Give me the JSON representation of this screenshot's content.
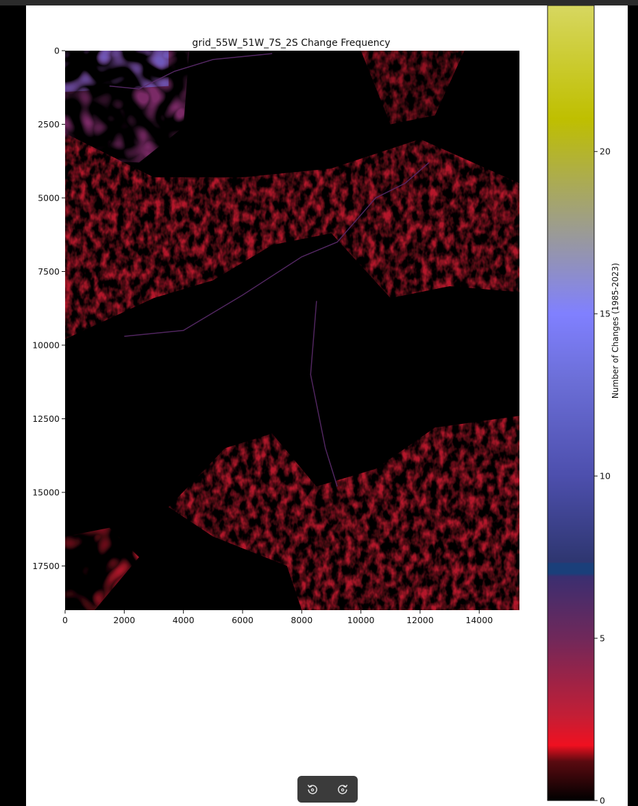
{
  "toolbar": {
    "buttons": [
      {
        "name": "rotate-left-button",
        "icon": "rotate-counterclockwise-icon"
      },
      {
        "name": "rotate-right-button",
        "icon": "rotate-clockwise-icon"
      }
    ]
  },
  "chart_data": {
    "type": "heatmap",
    "title": "grid_55W_51W_7S_2S Change Frequency",
    "xlabel": "",
    "ylabel": "",
    "xlim": [
      0,
      15360
    ],
    "ylim": [
      19000,
      0
    ],
    "x_ticks": [
      0,
      2000,
      4000,
      6000,
      8000,
      10000,
      12000,
      14000
    ],
    "x_tick_labels": [
      "0",
      "2000",
      "4000",
      "6000",
      "8000",
      "10000",
      "12000",
      "14000"
    ],
    "y_ticks": [
      0,
      2500,
      5000,
      7500,
      10000,
      12500,
      15000,
      17500
    ],
    "y_tick_labels": [
      "0",
      "2500",
      "5000",
      "7500",
      "10000",
      "12500",
      "15000",
      "17500"
    ],
    "colorbar": {
      "label": "Number of Changes (1985-2023)",
      "range": [
        0,
        24.5
      ],
      "ticks": [
        0,
        5,
        10,
        15,
        20
      ],
      "tick_labels": [
        "0",
        "5",
        "10",
        "15",
        "20"
      ],
      "stops": [
        {
          "value": 0,
          "color": "#000000"
        },
        {
          "value": 1.2,
          "color": "#5a0a10"
        },
        {
          "value": 1.7,
          "color": "#f01020"
        },
        {
          "value": 2.6,
          "color": "#c41e35"
        },
        {
          "value": 5.0,
          "color": "#70285a"
        },
        {
          "value": 6.9,
          "color": "#3b2e70"
        },
        {
          "value": 7.0,
          "color": "#1a3f7a"
        },
        {
          "value": 7.3,
          "color": "#1a3f7a"
        },
        {
          "value": 7.35,
          "color": "#2e3670"
        },
        {
          "value": 10,
          "color": "#4d4fad"
        },
        {
          "value": 13,
          "color": "#6c6fd8"
        },
        {
          "value": 15,
          "color": "#8080ff"
        },
        {
          "value": 18,
          "color": "#a0a080"
        },
        {
          "value": 21,
          "color": "#bfbf00"
        },
        {
          "value": 24.5,
          "color": "#d7d760"
        }
      ]
    },
    "grid": false,
    "legend": "colorbar-right",
    "description_colors": {
      "background": "#000000",
      "change_low": "#b5182b",
      "change_mid": "#7a2a66",
      "change_high": "#6e5fc4"
    }
  }
}
